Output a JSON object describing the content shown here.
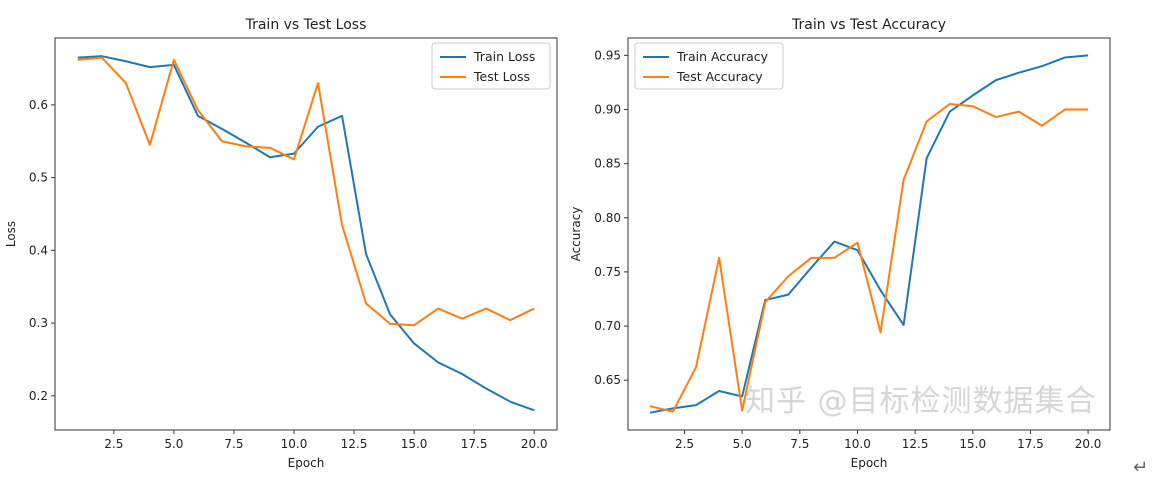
{
  "chart_data": [
    {
      "type": "line",
      "title": "Train vs Test Loss",
      "xlabel": "Epoch",
      "ylabel": "Loss",
      "x": [
        1,
        2,
        3,
        4,
        5,
        6,
        7,
        8,
        9,
        10,
        11,
        12,
        13,
        14,
        15,
        16,
        17,
        18,
        19,
        20
      ],
      "xlim": [
        0.05,
        20.95
      ],
      "ylim": [
        0.153,
        0.692
      ],
      "xticks": [
        2.5,
        5.0,
        7.5,
        10.0,
        12.5,
        15.0,
        17.5,
        20.0
      ],
      "yticks": [
        0.2,
        0.3,
        0.4,
        0.5,
        0.6
      ],
      "legend": "top-right",
      "grid": false,
      "series": [
        {
          "name": "Train Loss",
          "color": "#1f77b4",
          "values": [
            0.665,
            0.667,
            0.66,
            0.652,
            0.655,
            0.585,
            0.567,
            0.548,
            0.528,
            0.533,
            0.57,
            0.585,
            0.395,
            0.312,
            0.272,
            0.246,
            0.23,
            0.21,
            0.192,
            0.18
          ]
        },
        {
          "name": "Test Loss",
          "color": "#ff7f0e",
          "values": [
            0.662,
            0.665,
            0.63,
            0.545,
            0.662,
            0.593,
            0.55,
            0.543,
            0.541,
            0.525,
            0.63,
            0.435,
            0.327,
            0.299,
            0.297,
            0.32,
            0.306,
            0.32,
            0.304,
            0.32
          ]
        }
      ]
    },
    {
      "type": "line",
      "title": "Train vs Test Accuracy",
      "xlabel": "Epoch",
      "ylabel": "Accuracy",
      "x": [
        1,
        2,
        3,
        4,
        5,
        6,
        7,
        8,
        9,
        10,
        11,
        12,
        13,
        14,
        15,
        16,
        17,
        18,
        19,
        20
      ],
      "xlim": [
        0.05,
        20.95
      ],
      "ylim": [
        0.604,
        0.966
      ],
      "xticks": [
        2.5,
        5.0,
        7.5,
        10.0,
        12.5,
        15.0,
        17.5,
        20.0
      ],
      "yticks": [
        0.65,
        0.7,
        0.75,
        0.8,
        0.85,
        0.9,
        0.95
      ],
      "legend": "top-left",
      "grid": false,
      "series": [
        {
          "name": "Train Accuracy",
          "color": "#1f77b4",
          "values": [
            0.62,
            0.624,
            0.627,
            0.64,
            0.635,
            0.724,
            0.729,
            0.754,
            0.778,
            0.77,
            0.733,
            0.701,
            0.855,
            0.898,
            0.913,
            0.927,
            0.934,
            0.94,
            0.948,
            0.95
          ]
        },
        {
          "name": "Test Accuracy",
          "color": "#ff7f0e",
          "values": [
            0.626,
            0.621,
            0.662,
            0.763,
            0.622,
            0.722,
            0.746,
            0.763,
            0.763,
            0.777,
            0.694,
            0.835,
            0.889,
            0.905,
            0.903,
            0.893,
            0.898,
            0.885,
            0.9,
            0.9
          ]
        }
      ]
    }
  ],
  "watermark": "知乎 @目标检测数据集合",
  "return_glyph": "↵"
}
